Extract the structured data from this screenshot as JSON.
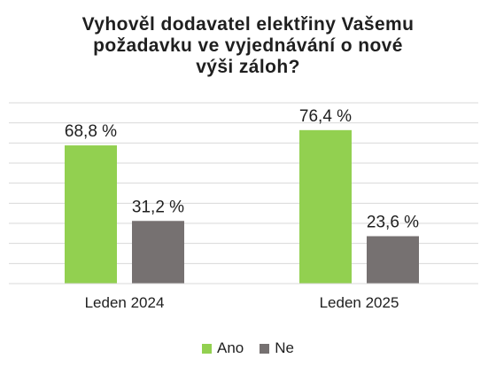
{
  "chart_data": {
    "type": "bar",
    "title_lines": [
      "Vyhověl dodavatel elektřiny Vašemu",
      "požadavku ve vyjednávání o nové",
      "výši záloh?"
    ],
    "categories": [
      "Leden 2024",
      "Leden 2025"
    ],
    "series": [
      {
        "name": "Ano",
        "color": "#92d050",
        "values": [
          68.8,
          76.4
        ],
        "labels": [
          "68,8 %",
          "76,4 %"
        ]
      },
      {
        "name": "Ne",
        "color": "#767171",
        "values": [
          31.2,
          23.6
        ],
        "labels": [
          "31,2 %",
          "23,6 %"
        ]
      }
    ],
    "ylim": [
      0,
      90
    ],
    "grid": true,
    "legend_position": "bottom"
  }
}
